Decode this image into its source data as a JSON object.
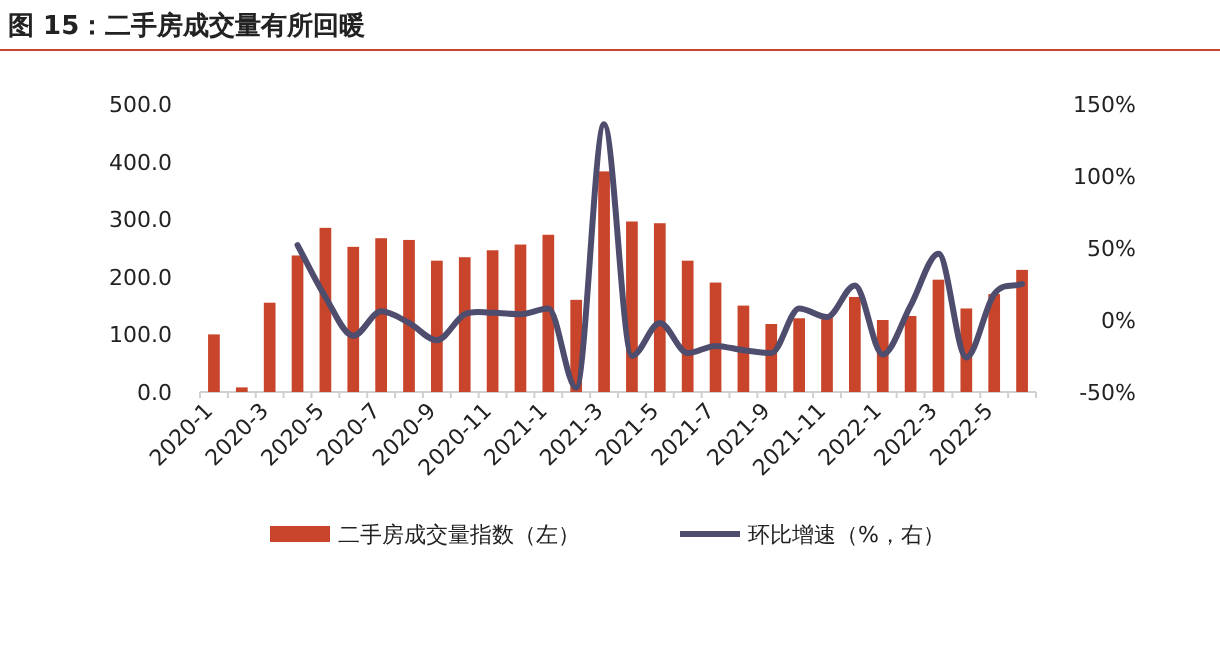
{
  "chart_data": {
    "type": "bar",
    "title": "图 15：二手房成交量有所回暖",
    "categories": [
      "2020-1",
      null,
      "2020-3",
      null,
      "2020-5",
      null,
      "2020-7",
      null,
      "2020-9",
      null,
      "2020-11",
      null,
      "2021-1",
      null,
      "2021-3",
      null,
      "2021-5",
      null,
      "2021-7",
      null,
      "2021-9",
      null,
      "2021-11",
      null,
      "2022-1",
      null,
      "2022-3",
      null,
      "2022-5",
      null
    ],
    "series": [
      {
        "name": "二手房成交量指数（左）",
        "color": "#c8442a",
        "values": [
          100,
          8,
          155,
          237,
          285,
          252,
          267,
          264,
          228,
          234,
          246,
          256,
          273,
          160,
          383,
          296,
          293,
          228,
          190,
          150,
          118,
          128,
          130,
          165,
          125,
          132,
          195,
          145,
          170,
          212
        ]
      },
      {
        "name": "环比增速（%，右）",
        "type": "line",
        "axis": "y2",
        "color": "#4f4d6e",
        "values": [
          null,
          null,
          null,
          52,
          16,
          -11,
          6,
          -2,
          -14,
          4,
          5,
          4,
          8,
          -47,
          136,
          -25,
          -2,
          -23,
          -18,
          -21,
          -23,
          8,
          2,
          24,
          -24,
          10,
          46,
          -26,
          18,
          25
        ]
      }
    ],
    "ylim": [
      0,
      500
    ],
    "yticks": [
      {
        "value": 0,
        "label": "0.0"
      },
      {
        "value": 100,
        "label": "100.0"
      },
      {
        "value": 200,
        "label": "200.0"
      },
      {
        "value": 300,
        "label": "300.0"
      },
      {
        "value": 400,
        "label": "400.0"
      },
      {
        "value": 500,
        "label": "500.0"
      }
    ],
    "y2lim": [
      -50,
      150
    ],
    "y2ticks": [
      {
        "value": -50,
        "label": "-50%"
      },
      {
        "value": 0,
        "label": "0%"
      },
      {
        "value": 50,
        "label": "50%"
      },
      {
        "value": 100,
        "label": "100%"
      },
      {
        "value": 150,
        "label": "150%"
      }
    ],
    "legend": "bottom"
  }
}
